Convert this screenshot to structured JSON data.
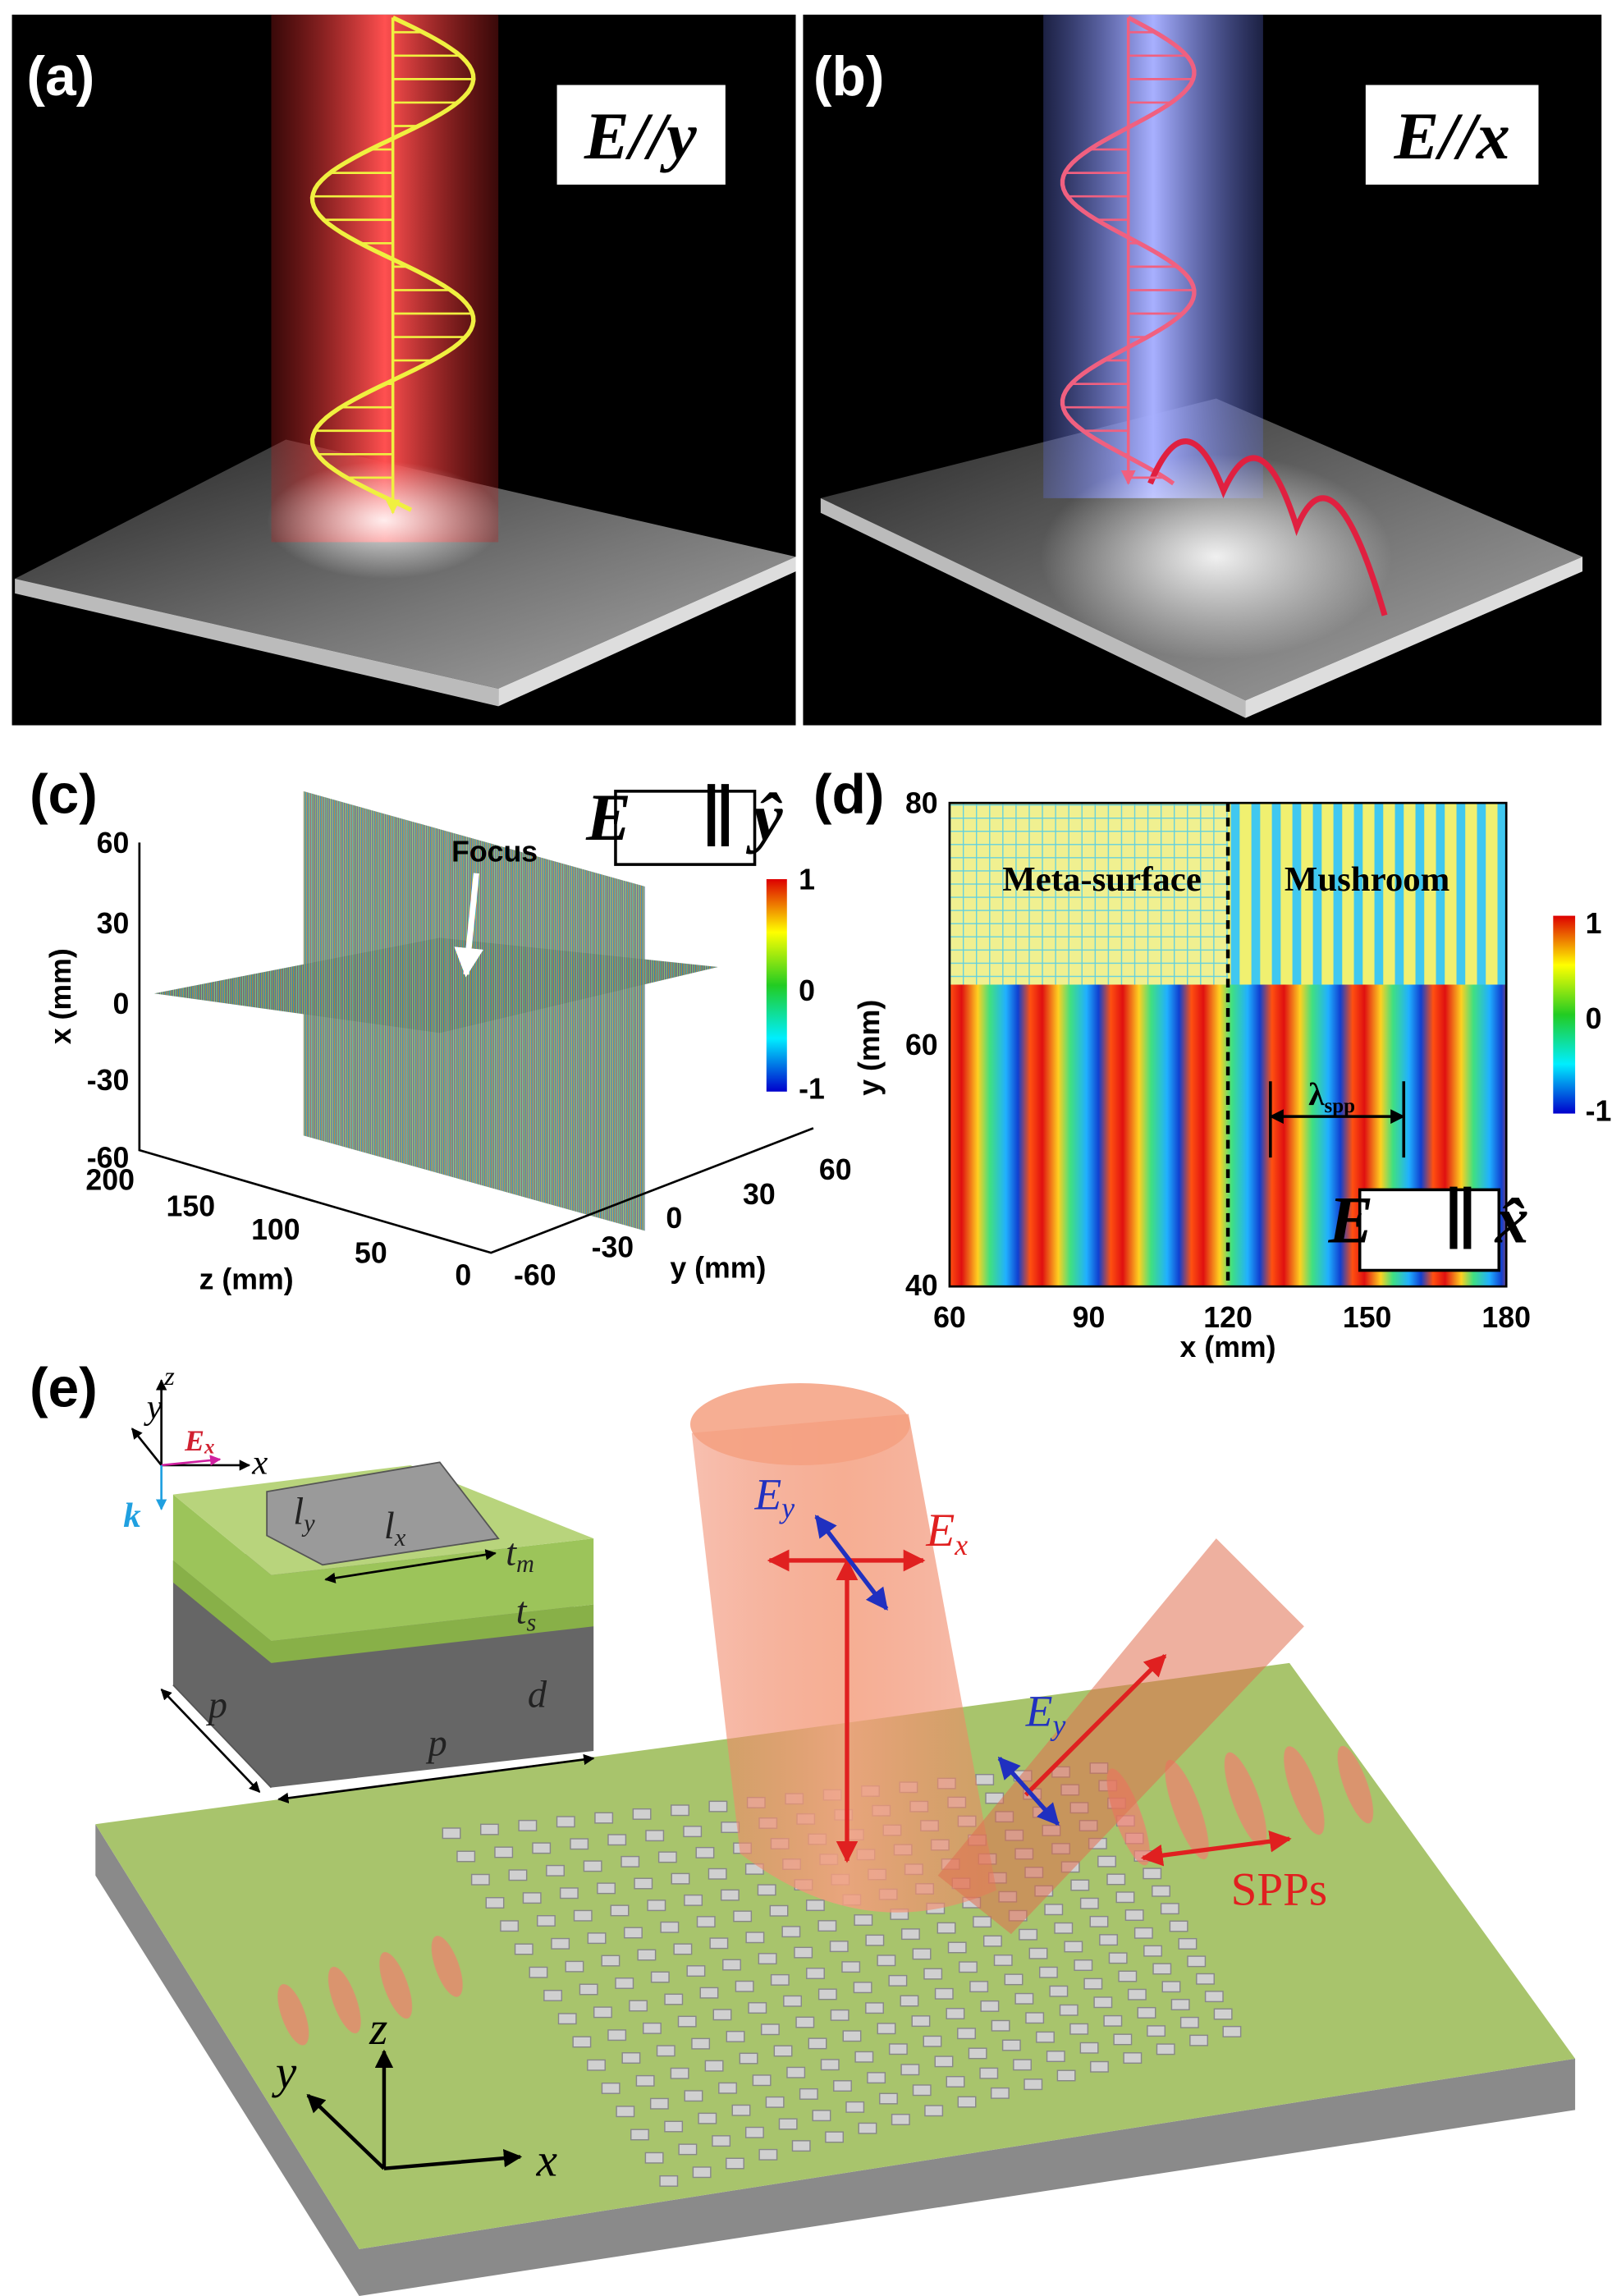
{
  "panels": {
    "a": {
      "label": "(a)",
      "field": "E//y"
    },
    "b": {
      "label": "(b)",
      "field": "E//x"
    },
    "c": {
      "label": "(c)",
      "x_axis_label": "x (mm)",
      "x_ticks": [
        "60",
        "30",
        "0",
        "-30",
        "-60"
      ],
      "z_axis_label": "z (mm)",
      "z_ticks": [
        "200",
        "150",
        "100",
        "50",
        "0"
      ],
      "y_axis_label": "y (mm)",
      "y_ticks": [
        "-60",
        "-30",
        "0",
        "30",
        "60"
      ],
      "annotation": "Focus",
      "colorbar_ticks": [
        "1",
        "0",
        "-1"
      ],
      "legend": "E⃗ ∥ ŷ"
    },
    "d": {
      "label": "(d)",
      "y_axis_label": "y (mm)",
      "y_ticks": [
        "80",
        "60",
        "40"
      ],
      "x_axis_label": "x (mm)",
      "x_ticks": [
        "60",
        "90",
        "120",
        "150",
        "180"
      ],
      "region_left": "Meta-surface",
      "region_right": "Mushroom",
      "wavelength": {
        "symbol": "λ",
        "sub": "spp"
      },
      "colorbar_ticks": [
        "1",
        "0",
        "-1"
      ],
      "legend": "E⃗ ∥ x̂"
    },
    "e": {
      "label": "(e)",
      "cell_axes": {
        "y": "y",
        "z": "z",
        "x": "x",
        "field": {
          "symbol": "E",
          "sub": "x"
        },
        "k": "k"
      },
      "cell_dims": {
        "ly": {
          "symbol": "l",
          "sub": "y"
        },
        "lx": {
          "symbol": "l",
          "sub": "x"
        },
        "tm": {
          "symbol": "t",
          "sub": "m"
        },
        "ts": {
          "symbol": "t",
          "sub": "s"
        },
        "p1": "p",
        "d": "d",
        "p2": "p"
      },
      "incident": {
        "ey": {
          "symbol": "E",
          "sub": "y"
        },
        "ex": {
          "symbol": "E",
          "sub": "x"
        }
      },
      "reflected": {
        "ey": {
          "symbol": "E",
          "sub": "y"
        }
      },
      "spp": "SPPs",
      "axes": {
        "y": "y",
        "z": "z",
        "x": "x"
      }
    }
  }
}
